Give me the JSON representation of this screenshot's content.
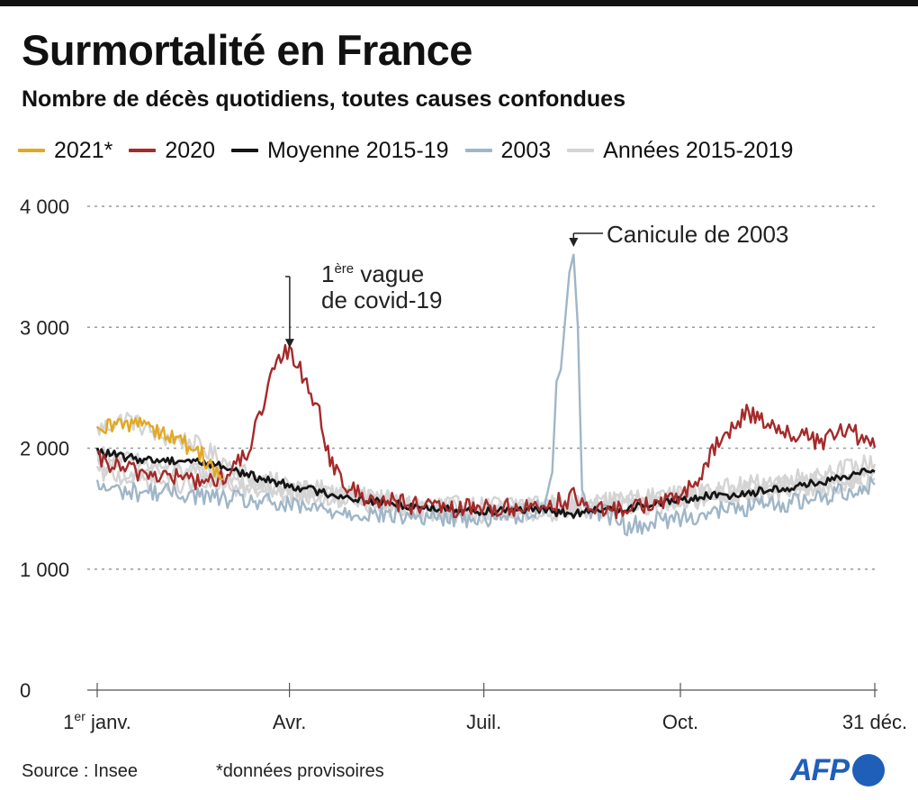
{
  "header": {
    "title": "Surmortalité en France",
    "subtitle": "Nombre de décès quotidiens, toutes causes confondues"
  },
  "footer": {
    "source": "Source : Insee",
    "note": "*données provisoires",
    "logo_text": "AFP"
  },
  "colors": {
    "y2021": "#e3a823",
    "y2020": "#a52a2a",
    "mean": "#151515",
    "y2003": "#9fb6c8",
    "years_2015_2019": "#d4d4d4",
    "grid": "#9a9a9a"
  },
  "chart_data": {
    "type": "line",
    "title": "Surmortalité en France",
    "subtitle": "Nombre de décès quotidiens, toutes causes confondues",
    "xlabel": "",
    "ylabel": "",
    "xlim": [
      1,
      365
    ],
    "ylim": [
      0,
      4000
    ],
    "grid": true,
    "legend_position": "top",
    "y_ticks": [
      {
        "value": 0,
        "label": "0"
      },
      {
        "value": 1000,
        "label": "1 000"
      },
      {
        "value": 2000,
        "label": "2 000"
      },
      {
        "value": 3000,
        "label": "3 000"
      },
      {
        "value": 4000,
        "label": "4 000"
      }
    ],
    "x_ticks": [
      {
        "day": 1,
        "label": "1",
        "sup": "er",
        "suffix": " janv."
      },
      {
        "day": 91,
        "label": "Avr.",
        "sup": "",
        "suffix": ""
      },
      {
        "day": 182,
        "label": "Juil.",
        "sup": "",
        "suffix": ""
      },
      {
        "day": 274,
        "label": "Oct.",
        "sup": "",
        "suffix": ""
      },
      {
        "day": 365,
        "label": "31 déc.",
        "sup": "",
        "suffix": ""
      }
    ],
    "annotations": [
      {
        "id": "covid",
        "day": 89,
        "value": 2800,
        "lines": [
          {
            "text": "1",
            "sup": "ère",
            "rest": " vague"
          },
          {
            "text": "de covid-19",
            "sup": "",
            "rest": ""
          }
        ]
      },
      {
        "id": "canicule",
        "day": 224,
        "value": 3610,
        "lines": [
          {
            "text": "Canicule de 2003",
            "sup": "",
            "rest": ""
          }
        ]
      }
    ],
    "series": [
      {
        "name": "Années  2015-2019",
        "key": "years_2015_2019",
        "legend": true,
        "x": [
          1,
          15,
          30,
          45,
          60,
          75,
          90,
          120,
          150,
          180,
          200,
          220,
          240,
          270,
          300,
          330,
          365
        ],
        "values": [
          2150,
          2250,
          2100,
          2050,
          1900,
          1750,
          1700,
          1620,
          1540,
          1520,
          1550,
          1560,
          1560,
          1610,
          1680,
          1760,
          1880
        ]
      },
      {
        "name": "Années  2015-2019",
        "key": "years_2015_2019",
        "legend": false,
        "x": [
          1,
          15,
          30,
          45,
          60,
          75,
          90,
          120,
          150,
          180,
          200,
          220,
          240,
          270,
          300,
          330,
          365
        ],
        "values": [
          1950,
          1900,
          1850,
          1800,
          1780,
          1720,
          1680,
          1600,
          1520,
          1480,
          1500,
          1520,
          1540,
          1600,
          1660,
          1720,
          1800
        ]
      },
      {
        "name": "Années  2015-2019",
        "key": "years_2015_2019",
        "legend": false,
        "x": [
          1,
          15,
          30,
          45,
          60,
          75,
          90,
          120,
          150,
          180,
          200,
          220,
          240,
          270,
          300,
          330,
          365
        ],
        "values": [
          1850,
          1820,
          1780,
          1800,
          1750,
          1700,
          1650,
          1580,
          1500,
          1470,
          1480,
          1500,
          1520,
          1560,
          1620,
          1680,
          1760
        ]
      },
      {
        "name": "Années  2015-2019",
        "key": "years_2015_2019",
        "legend": false,
        "x": [
          1,
          15,
          30,
          45,
          60,
          75,
          90,
          120,
          150,
          180,
          200,
          220,
          240,
          270,
          300,
          330,
          365
        ],
        "values": [
          1800,
          1760,
          1720,
          1700,
          1680,
          1650,
          1620,
          1560,
          1480,
          1450,
          1470,
          1480,
          1500,
          1540,
          1600,
          1650,
          1720
        ]
      },
      {
        "name": "2003",
        "key": "y2003",
        "legend": true,
        "x": [
          1,
          15,
          30,
          45,
          60,
          75,
          90,
          120,
          150,
          180,
          200,
          210,
          214,
          216,
          218,
          220,
          222,
          224,
          226,
          228,
          232,
          240,
          250,
          270,
          300,
          330,
          365
        ],
        "values": [
          1680,
          1640,
          1640,
          1620,
          1580,
          1560,
          1520,
          1470,
          1430,
          1420,
          1460,
          1520,
          1800,
          2550,
          2650,
          3050,
          3450,
          3600,
          3000,
          1650,
          1500,
          1450,
          1350,
          1420,
          1500,
          1560,
          1700
        ]
      },
      {
        "name": "Moyenne 2015-19",
        "key": "mean",
        "legend": true,
        "x": [
          1,
          15,
          30,
          45,
          60,
          75,
          90,
          105,
          120,
          135,
          150,
          165,
          180,
          195,
          210,
          225,
          240,
          255,
          270,
          285,
          300,
          315,
          330,
          345,
          360,
          365
        ],
        "values": [
          1975,
          1920,
          1900,
          1900,
          1850,
          1760,
          1700,
          1640,
          1590,
          1550,
          1520,
          1500,
          1480,
          1500,
          1480,
          1460,
          1490,
          1520,
          1560,
          1600,
          1620,
          1650,
          1690,
          1730,
          1800,
          1840
        ]
      },
      {
        "name": "2020",
        "key": "y2020",
        "legend": true,
        "x": [
          1,
          15,
          30,
          45,
          55,
          65,
          72,
          78,
          83,
          87,
          90,
          95,
          100,
          105,
          108,
          112,
          115,
          120,
          130,
          140,
          150,
          160,
          170,
          180,
          190,
          200,
          210,
          220,
          225,
          230,
          240,
          250,
          260,
          270,
          280,
          285,
          290,
          295,
          300,
          305,
          312,
          320,
          330,
          340,
          350,
          358,
          362,
          365
        ],
        "values": [
          1900,
          1820,
          1780,
          1740,
          1720,
          1820,
          2000,
          2300,
          2600,
          2750,
          2800,
          2700,
          2500,
          2300,
          2050,
          1800,
          1750,
          1650,
          1580,
          1560,
          1520,
          1500,
          1490,
          1520,
          1500,
          1510,
          1530,
          1570,
          1600,
          1500,
          1470,
          1520,
          1540,
          1560,
          1700,
          1800,
          2000,
          2100,
          2200,
          2300,
          2250,
          2150,
          2100,
          2050,
          2150,
          2100,
          2050,
          2000
        ]
      },
      {
        "name": "2021*",
        "key": "y2021",
        "legend": true,
        "x": [
          1,
          5,
          10,
          15,
          20,
          25,
          30,
          35,
          40,
          45,
          50,
          55,
          60
        ],
        "values": [
          2100,
          2150,
          2200,
          2180,
          2250,
          2200,
          2150,
          2100,
          2050,
          2000,
          1950,
          1850,
          1720
        ]
      }
    ]
  }
}
